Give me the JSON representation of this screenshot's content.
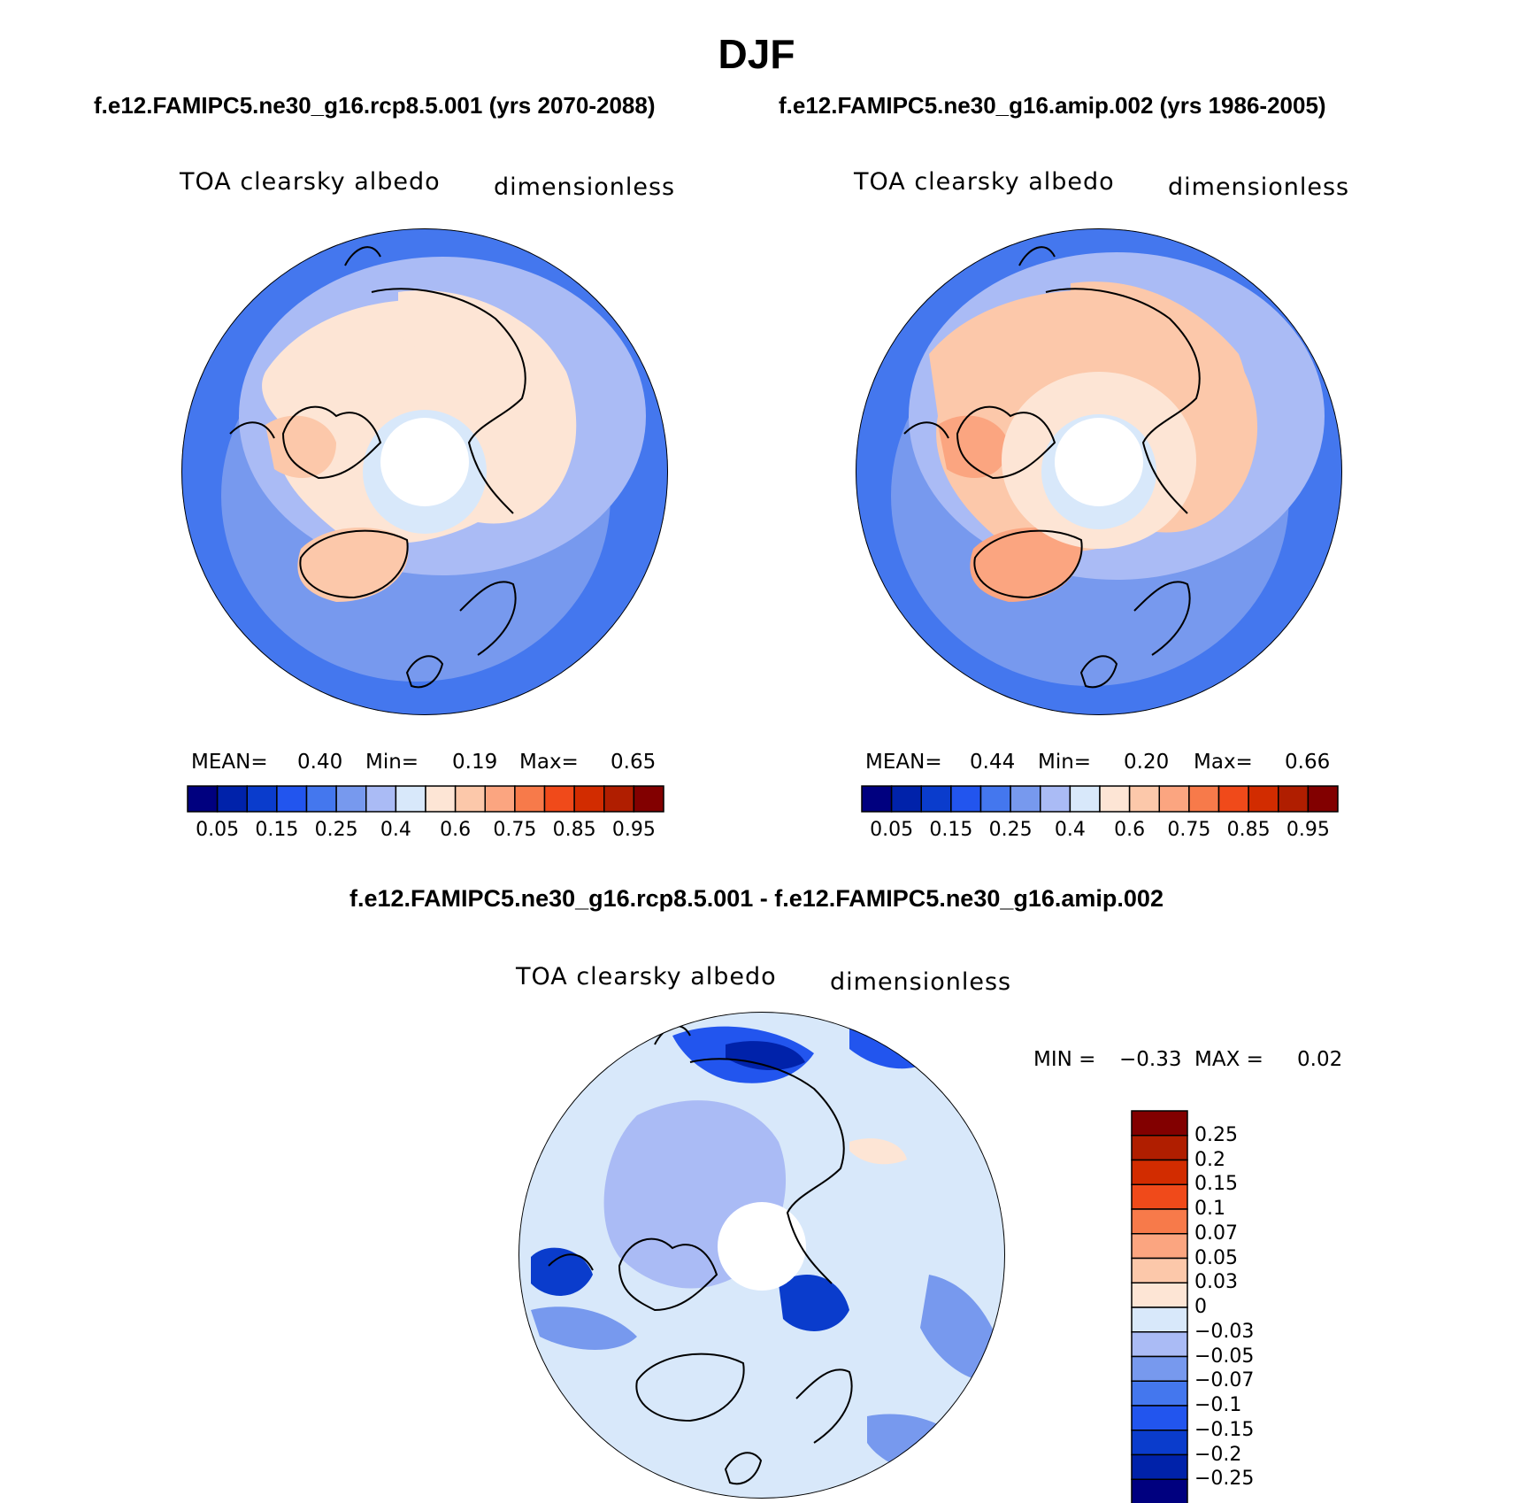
{
  "figure": {
    "title": "DJF",
    "case1_title": "f.e12.FAMIPC5.ne30_g16.rcp8.5.001 (yrs 2070-2088)",
    "case2_title": "f.e12.FAMIPC5.ne30_g16.amip.002 (yrs 1986-2005)",
    "diff_title": "f.e12.FAMIPC5.ne30_g16.rcp8.5.001 - f.e12.FAMIPC5.ne30_g16.amip.002"
  },
  "panels": [
    {
      "variable": "TOA clearsky albedo",
      "units": "dimensionless",
      "mean_label": "MEAN=",
      "mean": "0.40",
      "min_label": "Min=",
      "min": "0.19",
      "max_label": "Max=",
      "max": "0.65"
    },
    {
      "variable": "TOA clearsky albedo",
      "units": "dimensionless",
      "mean_label": "MEAN=",
      "mean": "0.44",
      "min_label": "Min=",
      "min": "0.20",
      "max_label": "Max=",
      "max": "0.66"
    }
  ],
  "diff_panel": {
    "variable": "TOA clearsky albedo",
    "units": "dimensionless",
    "min_label": "MIN =",
    "min": "−0.33",
    "max_label": "MAX =",
    "max": "0.02"
  },
  "colorbar_main": {
    "colors": [
      "#00007f",
      "#0022aa",
      "#0a3ccc",
      "#2255ee",
      "#4477ee",
      "#7799ee",
      "#aabbf5",
      "#d8e8fa",
      "#fde5d5",
      "#fcc8aa",
      "#fba580",
      "#f77a4a",
      "#f04a1a",
      "#d22c00",
      "#b01e00",
      "#820000"
    ],
    "tick_labels": [
      "0.05",
      "0.15",
      "0.25",
      "0.4",
      "0.6",
      "0.75",
      "0.85",
      "0.95"
    ]
  },
  "colorbar_diff": {
    "colors_top_to_bottom": [
      "#820000",
      "#b01e00",
      "#d22c00",
      "#f04a1a",
      "#f77a4a",
      "#fba580",
      "#fcc8aa",
      "#fde5d5",
      "#d8e8fa",
      "#aabbf5",
      "#7799ee",
      "#4477ee",
      "#2255ee",
      "#0a3ccc",
      "#0022aa",
      "#00007f"
    ],
    "tick_labels": [
      "0.25",
      "0.2",
      "0.15",
      "0.1",
      "0.07",
      "0.05",
      "0.03",
      "0",
      "−0.03",
      "−0.05",
      "−0.07",
      "−0.1",
      "−0.15",
      "−0.2",
      "−0.25"
    ]
  }
}
